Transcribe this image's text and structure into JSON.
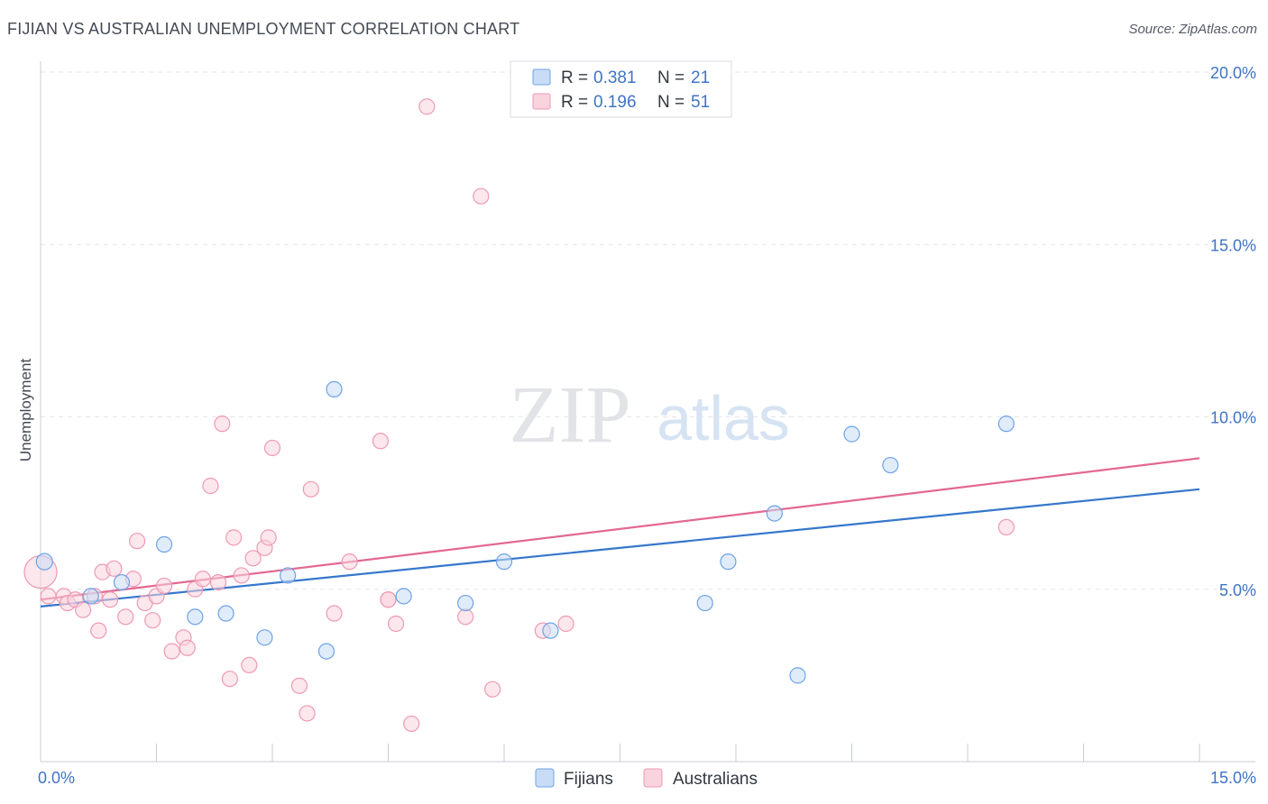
{
  "header": {
    "title": "FIJIAN VS AUSTRALIAN UNEMPLOYMENT CORRELATION CHART",
    "source": "Source: ZipAtlas.com"
  },
  "watermark": {
    "zip": "ZIP",
    "atlas": "atlas"
  },
  "colors": {
    "fijians": "#6fa3e6",
    "fijians_fill": "#c9dcf5",
    "fijians_line": "#3677cc",
    "australians": "#ee9ab3",
    "australians_fill": "#f9d3de",
    "australians_line": "#e36891",
    "axis_text": "#3f74c5",
    "grid": "#e3e5ea"
  },
  "chart_data": {
    "type": "scatter",
    "title": "FIJIAN VS AUSTRALIAN UNEMPLOYMENT CORRELATION CHART",
    "xlabel": "",
    "ylabel": "Unemployment",
    "xlim": [
      0,
      15
    ],
    "ylim": [
      0,
      20
    ],
    "x_tick_labels": [
      "0.0%",
      "15.0%"
    ],
    "y_ticks": [
      5,
      10,
      15,
      20
    ],
    "y_tick_labels": [
      "5.0%",
      "10.0%",
      "15.0%",
      "20.0%"
    ],
    "grid": true,
    "legend_position": "top-center",
    "legend": [
      {
        "series": "Fijians",
        "r_label": "R =",
        "r_value": "0.381",
        "n_label": "N =",
        "n_value": "21"
      },
      {
        "series": "Australians",
        "r_label": "R =",
        "r_value": "0.196",
        "n_label": "N =",
        "n_value": "51"
      }
    ],
    "series": [
      {
        "name": "Fijians",
        "trend": [
          [
            0,
            4.5
          ],
          [
            15,
            7.9
          ]
        ],
        "points": [
          [
            0.05,
            5.8
          ],
          [
            0.65,
            4.8
          ],
          [
            1.05,
            5.2
          ],
          [
            1.6,
            6.3
          ],
          [
            2.0,
            4.2
          ],
          [
            2.4,
            4.3
          ],
          [
            2.9,
            3.6
          ],
          [
            3.2,
            5.4
          ],
          [
            3.8,
            10.8
          ],
          [
            3.7,
            3.2
          ],
          [
            4.7,
            4.8
          ],
          [
            5.5,
            4.6
          ],
          [
            6.0,
            5.8
          ],
          [
            6.6,
            3.8
          ],
          [
            8.6,
            4.6
          ],
          [
            8.9,
            5.8
          ],
          [
            9.5,
            7.2
          ],
          [
            9.8,
            2.5
          ],
          [
            10.5,
            9.5
          ],
          [
            11.0,
            8.6
          ],
          [
            12.5,
            9.8
          ]
        ]
      },
      {
        "name": "Australians",
        "trend": [
          [
            0,
            4.7
          ],
          [
            15,
            8.8
          ]
        ],
        "points": [
          [
            0.0,
            5.5
          ],
          [
            0.1,
            4.8
          ],
          [
            0.3,
            4.8
          ],
          [
            0.35,
            4.6
          ],
          [
            0.45,
            4.7
          ],
          [
            0.55,
            4.4
          ],
          [
            0.7,
            4.8
          ],
          [
            0.75,
            3.8
          ],
          [
            0.8,
            5.5
          ],
          [
            0.9,
            4.7
          ],
          [
            0.95,
            5.6
          ],
          [
            1.1,
            4.2
          ],
          [
            1.2,
            5.3
          ],
          [
            1.25,
            6.4
          ],
          [
            1.35,
            4.6
          ],
          [
            1.45,
            4.1
          ],
          [
            1.5,
            4.8
          ],
          [
            1.6,
            5.1
          ],
          [
            1.7,
            3.2
          ],
          [
            1.85,
            3.6
          ],
          [
            1.9,
            3.3
          ],
          [
            2.0,
            5.0
          ],
          [
            2.1,
            5.3
          ],
          [
            2.2,
            8.0
          ],
          [
            2.3,
            5.2
          ],
          [
            2.35,
            9.8
          ],
          [
            2.45,
            2.4
          ],
          [
            2.5,
            6.5
          ],
          [
            2.6,
            5.4
          ],
          [
            2.7,
            2.8
          ],
          [
            2.75,
            5.9
          ],
          [
            2.9,
            6.2
          ],
          [
            2.95,
            6.5
          ],
          [
            3.0,
            9.1
          ],
          [
            3.35,
            2.2
          ],
          [
            3.45,
            1.4
          ],
          [
            3.5,
            7.9
          ],
          [
            3.8,
            4.3
          ],
          [
            4.0,
            5.8
          ],
          [
            4.4,
            9.3
          ],
          [
            4.5,
            4.7
          ],
          [
            4.6,
            4.0
          ],
          [
            4.8,
            1.1
          ],
          [
            5.0,
            19.0
          ],
          [
            5.5,
            4.2
          ],
          [
            5.7,
            16.4
          ],
          [
            5.85,
            2.1
          ],
          [
            6.5,
            3.8
          ],
          [
            6.8,
            4.0
          ],
          [
            12.5,
            6.8
          ],
          [
            4.5,
            4.7
          ]
        ]
      }
    ]
  },
  "bottom_legend": [
    "Fijians",
    "Australians"
  ]
}
